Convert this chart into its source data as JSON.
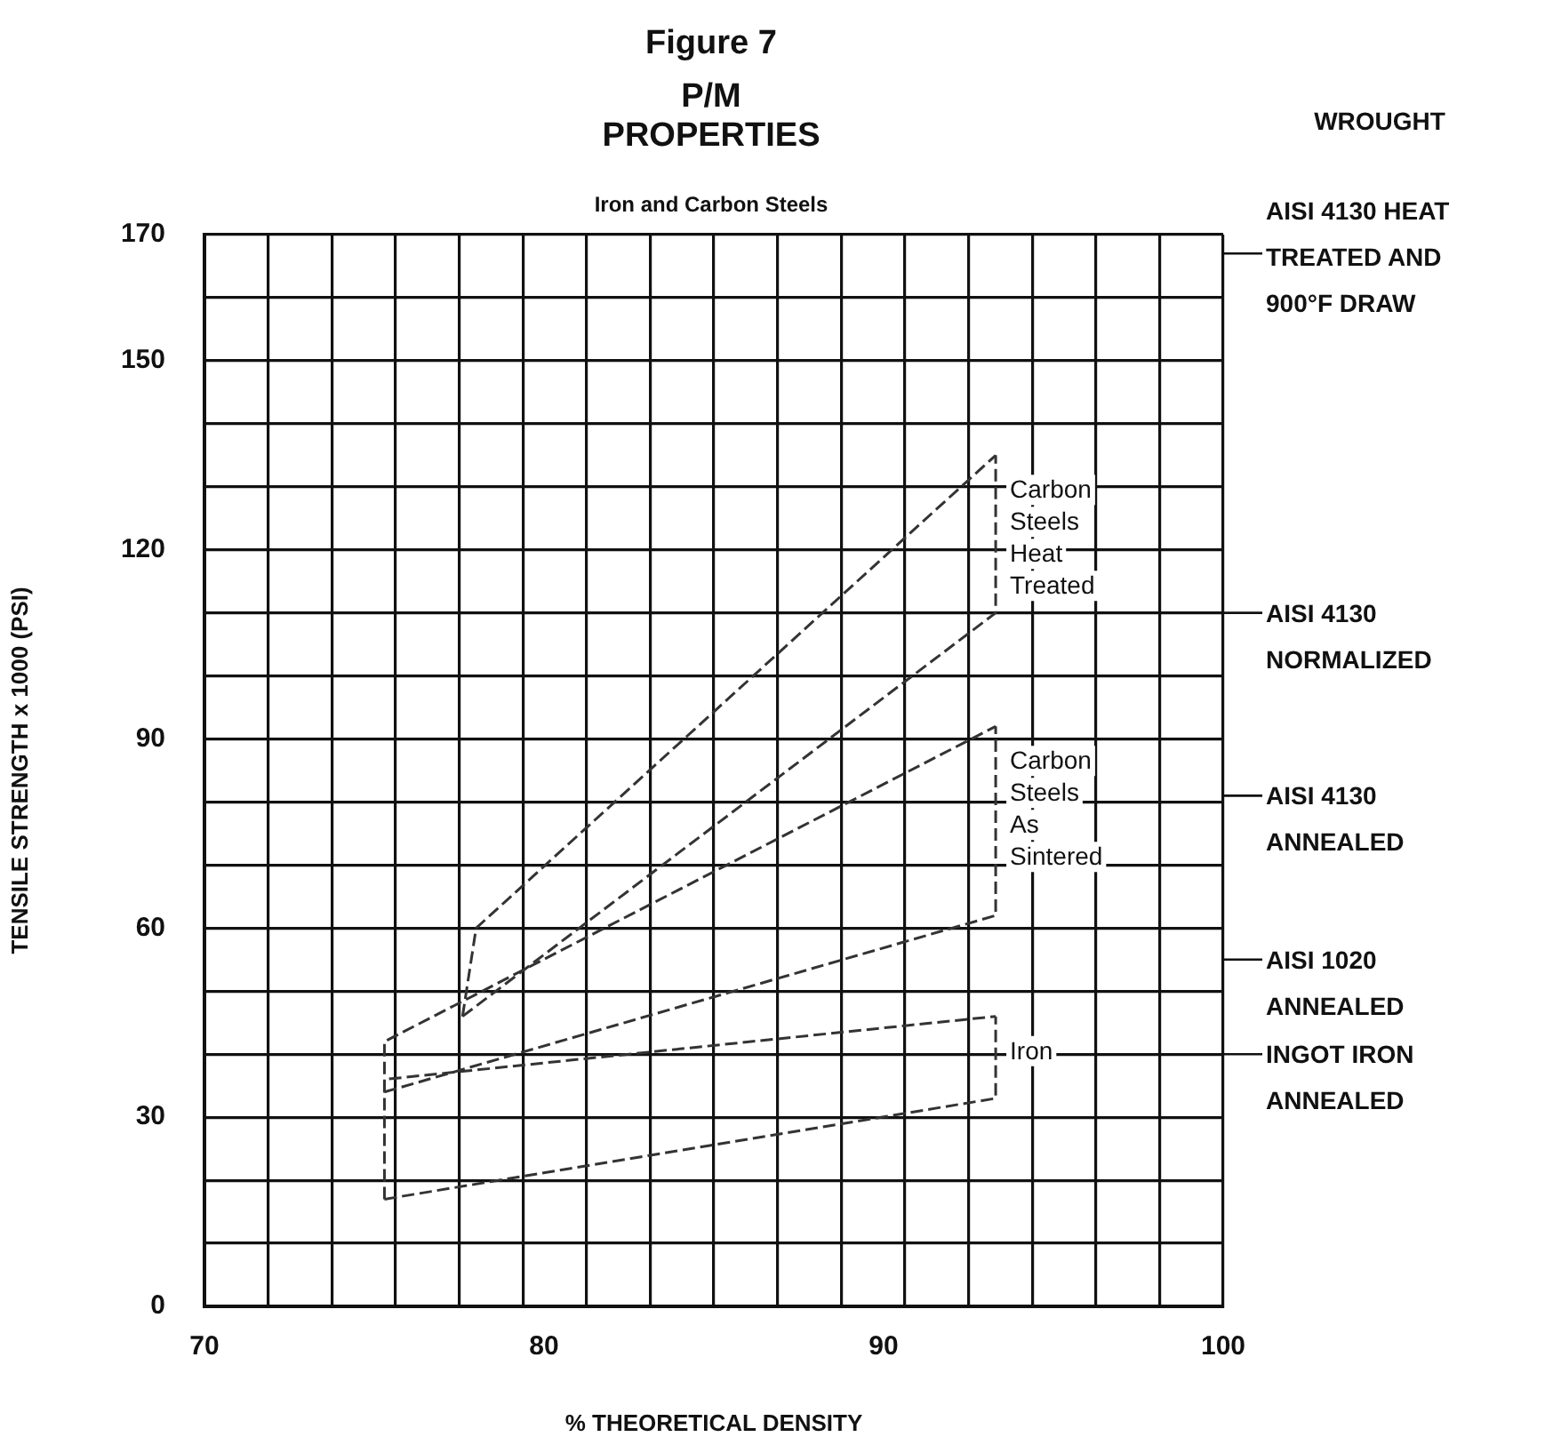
{
  "chart_data": {
    "type": "line",
    "title": "P/M PROPERTIES",
    "subtitle": "Iron and Carbon Steels",
    "xlabel": "% THEORETICAL DENSITY",
    "ylabel": "TENSILE STRENGTH x 1000 (PSI)",
    "annotations": [
      "Figure 7",
      "WROUGHT"
    ],
    "xlim": [
      70,
      100
    ],
    "xticks": [
      70,
      {
        "value": 71.875,
        "label": null
      },
      {
        "value": 73.75,
        "label": null
      },
      {
        "value": 75.625,
        "label": null
      },
      {
        "value": 77.5,
        "label": null
      },
      {
        "value": 79.375,
        "label": null
      },
      80,
      {
        "value": 81.25,
        "label": null
      },
      {
        "value": 83.125,
        "label": null
      },
      {
        "value": 85,
        "label": null
      },
      {
        "value": 86.875,
        "label": null
      },
      {
        "value": 88.75,
        "label": null
      },
      90,
      {
        "value": 90.625,
        "label": null
      },
      {
        "value": 92.5,
        "label": null
      },
      {
        "value": 94.375,
        "label": null
      },
      {
        "value": 96.25,
        "label": null
      },
      {
        "value": 98.125,
        "label": null
      },
      100
    ],
    "ylim": [
      0,
      170
    ],
    "yticks": [
      0,
      {
        "value": 10,
        "label": null
      },
      {
        "value": 20,
        "label": null
      },
      30,
      {
        "value": 40,
        "label": null
      },
      {
        "value": 50,
        "label": null
      },
      60,
      {
        "value": 70,
        "label": null
      },
      {
        "value": 80,
        "label": null
      },
      90,
      {
        "value": 100,
        "label": null
      },
      {
        "value": 110,
        "label": null
      },
      120,
      {
        "value": 130,
        "label": null
      },
      {
        "value": 140,
        "label": null
      },
      150,
      {
        "value": 160,
        "label": null
      },
      170
    ],
    "grid": true,
    "legend": false,
    "line_style": "dashed",
    "marker": "none",
    "series": [
      {
        "name": "Carbon Steels Heat Treated",
        "color": "#333333",
        "x": [
          77.6,
          93.3,
          93.3
        ],
        "values": [
          46,
          110,
          135
        ]
      },
      {
        "color": "#333333",
        "x": [
          77.6,
          78,
          93.3
        ],
        "values": [
          46,
          60,
          135
        ]
      },
      {
        "name": "Carbon Steels As Sintered",
        "color": "#333333",
        "x": [
          75.3,
          93.3,
          93.3
        ],
        "values": [
          34,
          62,
          92
        ]
      },
      {
        "color": "#333333",
        "x": [
          75.3,
          75.3,
          93.3
        ],
        "values": [
          34,
          42,
          92
        ]
      },
      {
        "name": "Iron",
        "color": "#333333",
        "x": [
          75.3,
          93.3,
          93.3
        ],
        "values": [
          17,
          33,
          46
        ]
      },
      {
        "color": "#333333",
        "x": [
          75.3,
          75.3,
          93.3
        ],
        "values": [
          17,
          36,
          46
        ]
      }
    ],
    "ref_lines": [
      {
        "axis": "y",
        "value": 167,
        "label": "AISI 4130 HEAT TREATED AND 900°F DRAW"
      },
      {
        "axis": "y",
        "value": 110,
        "label": "AISI 4130 NORMALIZED"
      },
      {
        "axis": "y",
        "value": 81,
        "label": "AISI 4130 ANNEALED"
      },
      {
        "axis": "y",
        "value": 55,
        "label": "AISI 1020 ANNEALED"
      },
      {
        "axis": "y",
        "value": 40,
        "label": "INGOT IRON ANNEALED"
      }
    ]
  }
}
